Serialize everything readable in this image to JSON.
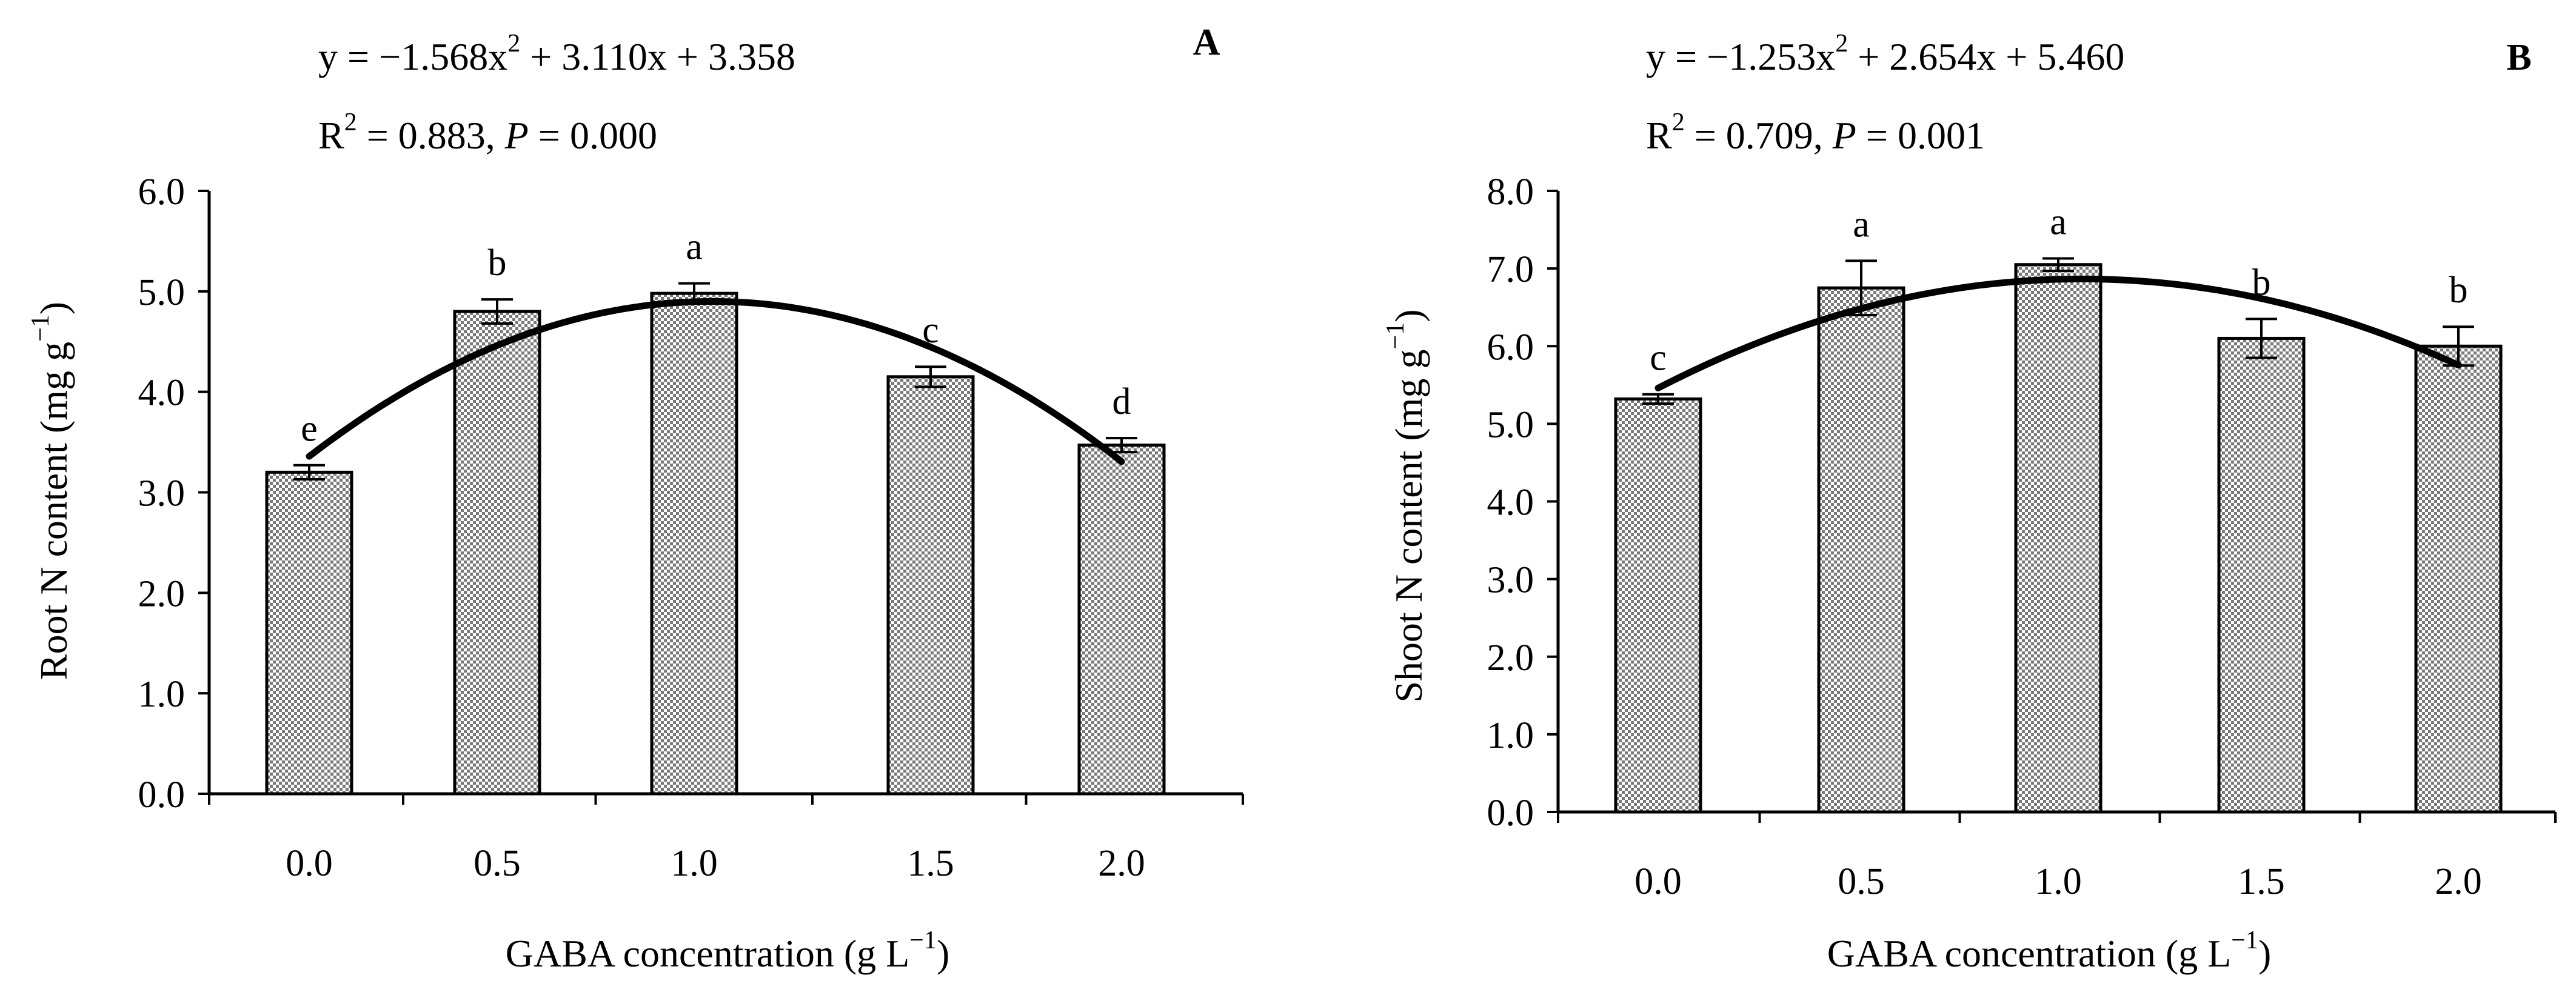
{
  "colors": {
    "bar_fill": "#9e9e9e",
    "bar_pattern_bg": "#ffffff",
    "ink": "#000000"
  },
  "chart_data": [
    {
      "id": "A",
      "type": "bar",
      "panel_label": "A",
      "equation": {
        "lead": "y = −1.568x",
        "sup": "2",
        "tail": " + 3.110x + 3.358"
      },
      "stats": {
        "r": "R",
        "r_sup": "2",
        "r_tail": " = 0.883, ",
        "p": "P",
        "p_tail": " = 0.000"
      },
      "ylabel": "Root N content (mg g",
      "ylabel_sup": "−1",
      "ylabel_close": ")",
      "xlabel": "GABA concentration (g L",
      "xlabel_sup": "−1",
      "xlabel_close": ")",
      "ylim": [
        0,
        6
      ],
      "yticks": [
        "0.0",
        "1.0",
        "2.0",
        "3.0",
        "4.0",
        "5.0",
        "6.0"
      ],
      "categories": [
        "0.0",
        "0.5",
        "1.0",
        "1.5",
        "2.0"
      ],
      "values": [
        3.2,
        4.8,
        4.98,
        4.15,
        3.47
      ],
      "errors": [
        0.07,
        0.12,
        0.1,
        0.1,
        0.07
      ],
      "letters": [
        "e",
        "b",
        "a",
        "c",
        "d"
      ],
      "fit": {
        "a": -1.568,
        "b": 3.11,
        "c": 3.358
      }
    },
    {
      "id": "B",
      "type": "bar",
      "panel_label": "B",
      "equation": {
        "lead": "y = −1.253x",
        "sup": "2",
        "tail": " + 2.654x + 5.460"
      },
      "stats": {
        "r": "R",
        "r_sup": "2",
        "r_tail": " = 0.709, ",
        "p": "P",
        "p_tail": " = 0.001"
      },
      "ylabel": "Shoot N content (mg g",
      "ylabel_sup": "−1",
      "ylabel_close": ")",
      "xlabel": "GABA concentration (g L",
      "xlabel_sup": "−1",
      "xlabel_close": ")",
      "ylim": [
        0,
        8
      ],
      "yticks": [
        "0.0",
        "1.0",
        "2.0",
        "3.0",
        "4.0",
        "5.0",
        "6.0",
        "7.0",
        "8.0"
      ],
      "categories": [
        "0.0",
        "0.5",
        "1.0",
        "1.5",
        "2.0"
      ],
      "values": [
        5.32,
        6.75,
        7.05,
        6.1,
        6.0
      ],
      "errors": [
        0.06,
        0.35,
        0.08,
        0.25,
        0.25
      ],
      "letters": [
        "c",
        "a",
        "a",
        "b",
        "b"
      ],
      "fit": {
        "a": -1.253,
        "b": 2.654,
        "c": 5.46
      }
    }
  ]
}
